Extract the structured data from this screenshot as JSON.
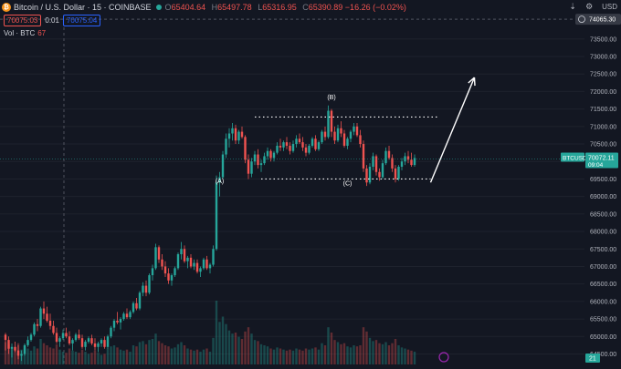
{
  "header": {
    "coin_icon": "bitcoin-icon",
    "coin_glyph": "₿",
    "title": "Bitcoin / U.S. Dollar · 15 · COINBASE",
    "ohlc": [
      {
        "key": "O",
        "value": "65404.64"
      },
      {
        "key": "H",
        "value": "65497.78"
      },
      {
        "key": "L",
        "value": "65316.95"
      },
      {
        "key": "C",
        "value": "65390.89 −16.26 (−0.02%)"
      }
    ]
  },
  "trade": {
    "sell": "70075.03",
    "spread": "0.01",
    "buy": "70075.04"
  },
  "volume_legend": {
    "label": "Vol · BTC",
    "value": "67"
  },
  "toolbar": {
    "currency": "USD",
    "icons": [
      "fit-icon",
      "settings-icon"
    ]
  },
  "colors": {
    "up": "#26a69a",
    "down": "#ef5350",
    "background": "#131722",
    "grid": "#1e222d",
    "text": "#d1d4dc"
  },
  "chart_data": {
    "type": "candlestick",
    "symbol": "BTCUSD",
    "y_ticks": [
      64500,
      65000,
      65500,
      66000,
      66500,
      67000,
      67500,
      68000,
      68500,
      69000,
      69500,
      70000,
      70500,
      71000,
      71500,
      72000,
      72500,
      73000,
      73500
    ],
    "ylim": [
      64200,
      74250
    ],
    "crosshair": {
      "price": "74065.30"
    },
    "last_price": {
      "label": "BTCUSD",
      "price": "70072.11",
      "countdown": "09:04"
    },
    "wave_labels": [
      {
        "label": "(B)",
        "bar": 102,
        "price": 71620
      },
      {
        "label": "(A)",
        "bar": 67,
        "price": 69380
      },
      {
        "label": "(C)",
        "bar": 107,
        "price": 69310
      }
    ],
    "resistance": {
      "price": 71270,
      "from_bar": 78,
      "to_bar": 135
    },
    "support": {
      "price": 69500,
      "from_bar": 80,
      "to_bar": 133
    },
    "projection": {
      "from_bar": 133,
      "from_price": 69400,
      "to_bar": 141,
      "to_price": 72400
    },
    "volume_value": "21",
    "points": [
      [
        65050,
        65100,
        64600,
        64900,
        42
      ],
      [
        64900,
        65000,
        64500,
        64650,
        38
      ],
      [
        64650,
        64800,
        64400,
        64700,
        30
      ],
      [
        64700,
        64850,
        64550,
        64600,
        33
      ],
      [
        64600,
        64750,
        64350,
        64450,
        40
      ],
      [
        64450,
        64600,
        64300,
        64500,
        28
      ],
      [
        64500,
        64800,
        64450,
        64750,
        35
      ],
      [
        64750,
        65000,
        64700,
        64900,
        30
      ],
      [
        64900,
        65100,
        64850,
        65050,
        26
      ],
      [
        65050,
        65400,
        65000,
        65350,
        34
      ],
      [
        65350,
        65500,
        65150,
        65300,
        30
      ],
      [
        65300,
        65850,
        65250,
        65800,
        48
      ],
      [
        65800,
        66000,
        65500,
        65650,
        40
      ],
      [
        65650,
        65850,
        65400,
        65450,
        36
      ],
      [
        65450,
        65650,
        65200,
        65300,
        32
      ],
      [
        65300,
        65450,
        65050,
        65100,
        30
      ],
      [
        65100,
        65250,
        64800,
        64850,
        38
      ],
      [
        64850,
        65000,
        64700,
        64950,
        28
      ],
      [
        64950,
        65200,
        64900,
        65100,
        24
      ],
      [
        65100,
        65250,
        64950,
        65000,
        22
      ],
      [
        65000,
        65150,
        64750,
        64800,
        30
      ],
      [
        64800,
        64950,
        64600,
        64900,
        26
      ],
      [
        64900,
        65100,
        64850,
        65050,
        24
      ],
      [
        65050,
        65200,
        64900,
        64950,
        22
      ],
      [
        64950,
        65050,
        64650,
        64700,
        28
      ],
      [
        64700,
        64900,
        64600,
        64850,
        24
      ],
      [
        64850,
        65000,
        64800,
        64950,
        20
      ],
      [
        64950,
        65050,
        64750,
        64800,
        22
      ],
      [
        64800,
        64950,
        64600,
        64700,
        26
      ],
      [
        64700,
        64850,
        64550,
        64800,
        22
      ],
      [
        64800,
        64950,
        64700,
        64900,
        18
      ],
      [
        64900,
        65000,
        64650,
        64700,
        20
      ],
      [
        64700,
        65050,
        64650,
        65000,
        30
      ],
      [
        65000,
        65300,
        64950,
        65250,
        34
      ],
      [
        65250,
        65500,
        65150,
        65450,
        36
      ],
      [
        65450,
        65700,
        65350,
        65400,
        32
      ],
      [
        65400,
        65550,
        65200,
        65500,
        28
      ],
      [
        65500,
        65700,
        65450,
        65650,
        26
      ],
      [
        65650,
        65800,
        65500,
        65550,
        28
      ],
      [
        65550,
        65750,
        65500,
        65700,
        24
      ],
      [
        65700,
        66000,
        65650,
        65950,
        36
      ],
      [
        65950,
        66100,
        65750,
        65800,
        34
      ],
      [
        65800,
        66300,
        65750,
        66250,
        42
      ],
      [
        66250,
        66550,
        66150,
        66450,
        44
      ],
      [
        66450,
        66600,
        66150,
        66250,
        38
      ],
      [
        66250,
        66800,
        66200,
        66750,
        46
      ],
      [
        66750,
        67050,
        66600,
        66950,
        48
      ],
      [
        66950,
        67650,
        66900,
        67550,
        58
      ],
      [
        67550,
        67600,
        67100,
        67200,
        44
      ],
      [
        67200,
        67350,
        66900,
        67000,
        40
      ],
      [
        67000,
        67150,
        66700,
        66800,
        36
      ],
      [
        66800,
        66950,
        66500,
        66600,
        34
      ],
      [
        66600,
        66800,
        66450,
        66750,
        30
      ],
      [
        66750,
        67000,
        66700,
        66950,
        32
      ],
      [
        66950,
        67400,
        66900,
        67350,
        38
      ],
      [
        67350,
        67700,
        67200,
        67500,
        42
      ],
      [
        67500,
        67600,
        67100,
        67150,
        36
      ],
      [
        67150,
        67300,
        66950,
        67250,
        30
      ],
      [
        67250,
        67350,
        66950,
        67000,
        28
      ],
      [
        67000,
        67200,
        66900,
        67100,
        26
      ],
      [
        67100,
        67200,
        66800,
        66850,
        28
      ],
      [
        66850,
        67000,
        66700,
        66950,
        24
      ],
      [
        66950,
        67250,
        66900,
        67200,
        28
      ],
      [
        67200,
        67300,
        66900,
        66950,
        30
      ],
      [
        66950,
        67100,
        66800,
        67050,
        24
      ],
      [
        67050,
        67600,
        67000,
        67500,
        50
      ],
      [
        67500,
        69600,
        67450,
        69400,
        120
      ],
      [
        69400,
        69700,
        69000,
        69550,
        80
      ],
      [
        69550,
        70300,
        69500,
        70200,
        90
      ],
      [
        70200,
        70800,
        70100,
        70650,
        76
      ],
      [
        70650,
        70950,
        70400,
        70800,
        64
      ],
      [
        70800,
        71100,
        70600,
        70950,
        58
      ],
      [
        70950,
        71050,
        70500,
        70600,
        60
      ],
      [
        70600,
        70900,
        70500,
        70850,
        52
      ],
      [
        70850,
        71000,
        70650,
        70700,
        48
      ],
      [
        70700,
        70750,
        69950,
        70050,
        62
      ],
      [
        70050,
        70200,
        69500,
        69650,
        70
      ],
      [
        69650,
        70100,
        69550,
        70000,
        58
      ],
      [
        70000,
        70300,
        69900,
        70200,
        46
      ],
      [
        70200,
        70350,
        69800,
        69900,
        44
      ],
      [
        69900,
        70050,
        69700,
        69950,
        38
      ],
      [
        69950,
        70250,
        69900,
        70150,
        36
      ],
      [
        70150,
        70400,
        70050,
        70300,
        34
      ],
      [
        70300,
        70350,
        70000,
        70100,
        30
      ],
      [
        70100,
        70300,
        70000,
        70250,
        28
      ],
      [
        70250,
        70550,
        70200,
        70450,
        32
      ],
      [
        70450,
        70650,
        70300,
        70400,
        30
      ],
      [
        70400,
        70600,
        70300,
        70550,
        28
      ],
      [
        70550,
        70700,
        70350,
        70450,
        26
      ],
      [
        70450,
        70550,
        70200,
        70300,
        28
      ],
      [
        70300,
        70600,
        70250,
        70500,
        26
      ],
      [
        70500,
        70750,
        70400,
        70650,
        30
      ],
      [
        70650,
        70800,
        70500,
        70550,
        28
      ],
      [
        70550,
        70700,
        70300,
        70400,
        26
      ],
      [
        70400,
        70500,
        70150,
        70250,
        30
      ],
      [
        70250,
        70500,
        70200,
        70450,
        28
      ],
      [
        70450,
        70700,
        70400,
        70650,
        30
      ],
      [
        70650,
        70750,
        70300,
        70350,
        32
      ],
      [
        70350,
        70600,
        70300,
        70550,
        28
      ],
      [
        70550,
        70900,
        70500,
        70850,
        40
      ],
      [
        70850,
        71000,
        70600,
        70700,
        36
      ],
      [
        70700,
        71600,
        70650,
        71450,
        70
      ],
      [
        71450,
        71500,
        70700,
        70850,
        60
      ],
      [
        70850,
        71000,
        70500,
        70600,
        46
      ],
      [
        70600,
        71050,
        70550,
        70950,
        42
      ],
      [
        70950,
        71150,
        70700,
        70800,
        38
      ],
      [
        70800,
        70900,
        70400,
        70450,
        40
      ],
      [
        70450,
        70700,
        70350,
        70650,
        34
      ],
      [
        70650,
        70900,
        70550,
        70850,
        32
      ],
      [
        70850,
        71100,
        70750,
        71000,
        36
      ],
      [
        71000,
        71100,
        70700,
        70750,
        34
      ],
      [
        70750,
        70900,
        70400,
        70500,
        36
      ],
      [
        70500,
        70600,
        69700,
        69800,
        70
      ],
      [
        69800,
        69900,
        69300,
        69400,
        62
      ],
      [
        69400,
        69950,
        69350,
        69850,
        50
      ],
      [
        69850,
        70250,
        69750,
        70150,
        44
      ],
      [
        70150,
        70200,
        69600,
        69700,
        46
      ],
      [
        69700,
        69800,
        69450,
        69550,
        40
      ],
      [
        69550,
        70050,
        69500,
        69950,
        38
      ],
      [
        69950,
        70400,
        69900,
        70300,
        42
      ],
      [
        70300,
        70450,
        70050,
        70100,
        36
      ],
      [
        70100,
        70200,
        69700,
        69800,
        40
      ],
      [
        69800,
        69900,
        69400,
        69500,
        48
      ],
      [
        69500,
        69900,
        69450,
        69850,
        36
      ],
      [
        69850,
        70100,
        69750,
        70000,
        32
      ],
      [
        70000,
        70250,
        69900,
        70150,
        30
      ],
      [
        70150,
        70300,
        69950,
        70050,
        28
      ],
      [
        70050,
        70250,
        69850,
        69900,
        26
      ],
      [
        69900,
        70200,
        69850,
        70100,
        24
      ]
    ]
  }
}
